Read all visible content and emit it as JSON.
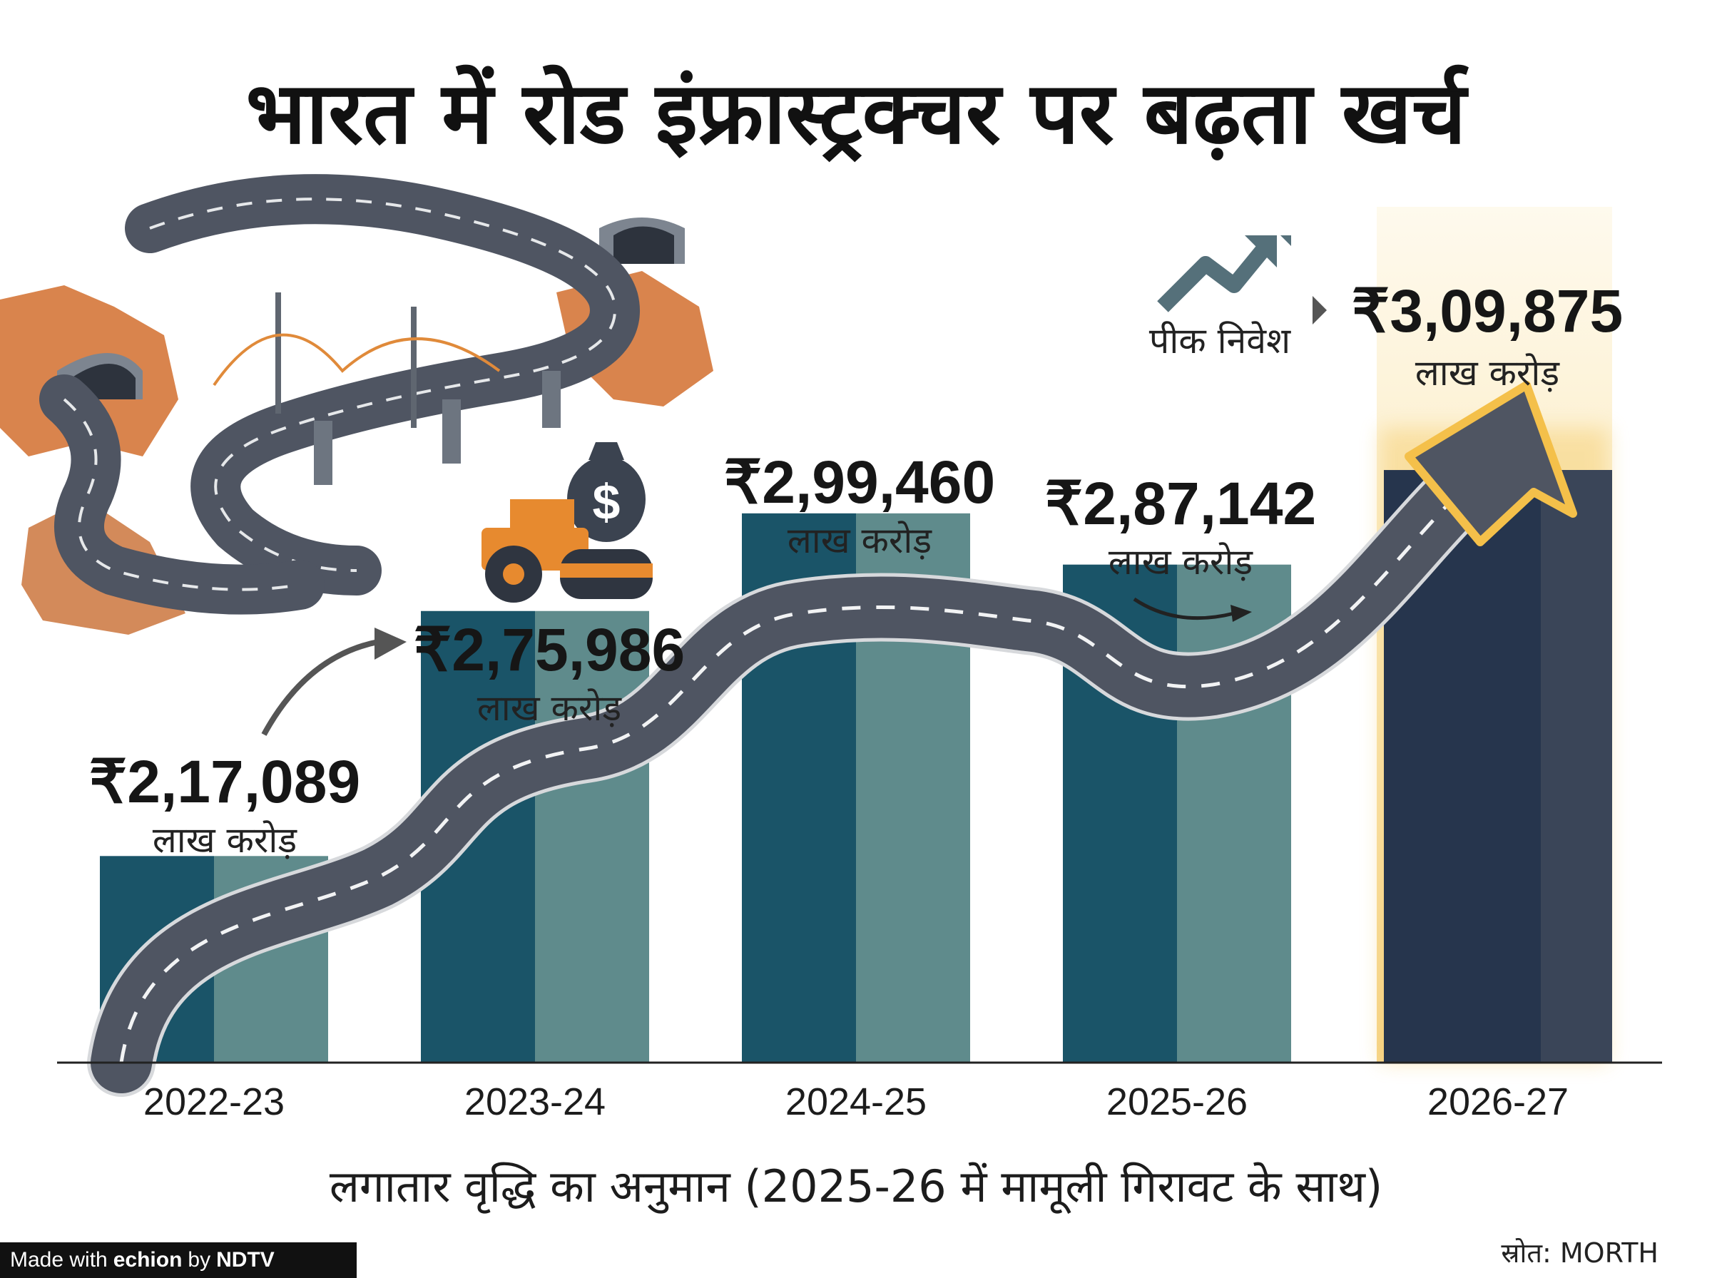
{
  "title": "भारत में रोड इंफ्रास्ट्रक्चर पर बढ़ता खर्च",
  "subtitle": "लगातार वृद्धि का अनुमान (2025-26 में मामूली गिरावट के साथ)",
  "source": "स्रोत: MORTH",
  "badge": {
    "made_with": "Made with",
    "brand": "echion",
    "by": "by",
    "publisher": "NDTV"
  },
  "peak_label": "पीक निवेश",
  "colors": {
    "bar_dark": "#1a5468",
    "bar_light": "#5f8b8c",
    "bar_peak": "#26354d",
    "road": "#4f5562",
    "road_edge": "#d7d9dc",
    "glow": "#f4c04a"
  },
  "chart_data": {
    "type": "bar",
    "categories": [
      "2022-23",
      "2023-24",
      "2024-25",
      "2025-26",
      "2026-27"
    ],
    "values": [
      217089,
      275986,
      299460,
      287142,
      309875
    ],
    "value_labels": [
      "₹2,17,089",
      "₹2,75,986",
      "₹2,99,460",
      "₹2,87,142",
      "₹3,09,875"
    ],
    "unit_label": "लाख करोड़",
    "xlabel": "",
    "ylabel": "",
    "grid": false,
    "legend": "none",
    "highlight": "2026-27"
  }
}
